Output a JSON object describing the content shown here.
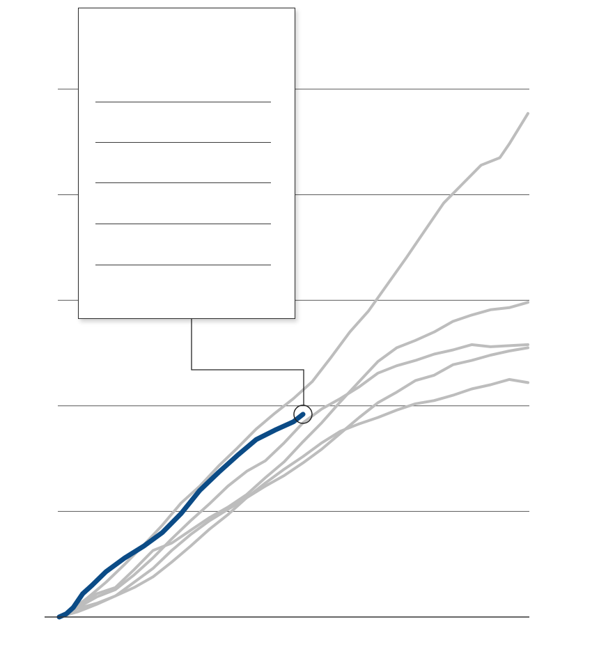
{
  "colors": {
    "highlight": "#0b4b86",
    "others": "#bdbdbd",
    "grid": "#555555",
    "axis": "#333333",
    "tooltip_border": "#2a2a2a"
  },
  "chart_data": {
    "type": "line",
    "title": "",
    "xlabel": "",
    "ylabel": "",
    "grid": true,
    "xlim": [
      0,
      100
    ],
    "ylim": [
      0,
      50
    ],
    "y_gridlines": [
      10,
      20,
      30,
      40,
      50
    ],
    "highlight_marker": {
      "x": 52,
      "y": 19.2
    },
    "series": [
      {
        "highlight": true,
        "points": [
          [
            0,
            0
          ],
          [
            1.5,
            0.3
          ],
          [
            3,
            0.9
          ],
          [
            5,
            2.2
          ],
          [
            7,
            3.0
          ],
          [
            10,
            4.3
          ],
          [
            14,
            5.6
          ],
          [
            18,
            6.7
          ],
          [
            22,
            8.0
          ],
          [
            26,
            9.8
          ],
          [
            30,
            12.0
          ],
          [
            34,
            13.7
          ],
          [
            38,
            15.3
          ],
          [
            42,
            16.8
          ],
          [
            46,
            17.7
          ],
          [
            50,
            18.5
          ],
          [
            52,
            19.2
          ]
        ]
      },
      {
        "highlight": false,
        "points": [
          [
            0,
            0
          ],
          [
            3,
            0.8
          ],
          [
            6,
            1.8
          ],
          [
            10,
            3.3
          ],
          [
            14,
            5.0
          ],
          [
            18,
            6.8
          ],
          [
            22,
            8.7
          ],
          [
            26,
            10.8
          ],
          [
            30,
            12.4
          ],
          [
            34,
            14.3
          ],
          [
            38,
            16.0
          ],
          [
            42,
            17.8
          ],
          [
            46,
            19.3
          ],
          [
            50,
            20.7
          ],
          [
            54,
            22.3
          ],
          [
            58,
            24.6
          ],
          [
            62,
            27.0
          ],
          [
            66,
            29.0
          ],
          [
            70,
            31.5
          ],
          [
            74,
            34.0
          ],
          [
            78,
            36.6
          ],
          [
            82,
            39.2
          ],
          [
            86,
            41.0
          ],
          [
            90,
            42.8
          ],
          [
            94,
            43.5
          ],
          [
            96,
            44.8
          ],
          [
            100,
            47.7
          ]
        ]
      },
      {
        "highlight": false,
        "points": [
          [
            0,
            0
          ],
          [
            4,
            1.0
          ],
          [
            8,
            2.2
          ],
          [
            12,
            2.8
          ],
          [
            16,
            4.5
          ],
          [
            20,
            6.3
          ],
          [
            24,
            7.0
          ],
          [
            28,
            8.2
          ],
          [
            32,
            9.4
          ],
          [
            36,
            10.4
          ],
          [
            40,
            11.6
          ],
          [
            44,
            13.2
          ],
          [
            48,
            14.7
          ],
          [
            52,
            16.6
          ],
          [
            56,
            18.4
          ],
          [
            60,
            20.4
          ],
          [
            64,
            22.3
          ],
          [
            68,
            24.2
          ],
          [
            72,
            25.5
          ],
          [
            76,
            26.2
          ],
          [
            80,
            27.0
          ],
          [
            84,
            28.0
          ],
          [
            88,
            28.6
          ],
          [
            92,
            29.1
          ],
          [
            96,
            29.3
          ],
          [
            100,
            29.8
          ]
        ]
      },
      {
        "highlight": false,
        "points": [
          [
            0,
            0
          ],
          [
            4,
            0.9
          ],
          [
            8,
            1.9
          ],
          [
            12,
            2.6
          ],
          [
            16,
            4.0
          ],
          [
            20,
            5.6
          ],
          [
            24,
            7.4
          ],
          [
            28,
            9.1
          ],
          [
            32,
            10.7
          ],
          [
            36,
            12.4
          ],
          [
            40,
            13.8
          ],
          [
            44,
            14.8
          ],
          [
            48,
            16.5
          ],
          [
            52,
            18.4
          ],
          [
            56,
            19.7
          ],
          [
            60,
            20.7
          ],
          [
            64,
            21.8
          ],
          [
            68,
            23.1
          ],
          [
            72,
            23.8
          ],
          [
            76,
            24.3
          ],
          [
            80,
            24.9
          ],
          [
            84,
            25.3
          ],
          [
            88,
            25.8
          ],
          [
            92,
            25.6
          ],
          [
            96,
            25.7
          ],
          [
            100,
            25.8
          ]
        ]
      },
      {
        "highlight": false,
        "points": [
          [
            0,
            0
          ],
          [
            4,
            0.5
          ],
          [
            8,
            1.2
          ],
          [
            12,
            2.0
          ],
          [
            16,
            3.3
          ],
          [
            20,
            4.6
          ],
          [
            24,
            6.3
          ],
          [
            28,
            7.8
          ],
          [
            32,
            9.1
          ],
          [
            36,
            10.2
          ],
          [
            40,
            11.3
          ],
          [
            44,
            12.4
          ],
          [
            48,
            13.4
          ],
          [
            52,
            14.6
          ],
          [
            56,
            15.9
          ],
          [
            60,
            17.4
          ],
          [
            64,
            18.9
          ],
          [
            68,
            20.3
          ],
          [
            72,
            21.3
          ],
          [
            76,
            22.4
          ],
          [
            80,
            22.9
          ],
          [
            84,
            23.9
          ],
          [
            88,
            24.3
          ],
          [
            92,
            24.8
          ],
          [
            96,
            25.2
          ],
          [
            100,
            25.5
          ]
        ]
      },
      {
        "highlight": false,
        "points": [
          [
            0,
            0
          ],
          [
            4,
            0.8
          ],
          [
            8,
            1.3
          ],
          [
            12,
            2.0
          ],
          [
            16,
            2.8
          ],
          [
            20,
            3.8
          ],
          [
            24,
            5.2
          ],
          [
            28,
            6.7
          ],
          [
            32,
            8.3
          ],
          [
            36,
            9.7
          ],
          [
            40,
            11.3
          ],
          [
            44,
            12.7
          ],
          [
            48,
            14.0
          ],
          [
            52,
            15.2
          ],
          [
            56,
            16.5
          ],
          [
            60,
            17.6
          ],
          [
            64,
            18.3
          ],
          [
            68,
            18.9
          ],
          [
            72,
            19.6
          ],
          [
            76,
            20.2
          ],
          [
            80,
            20.5
          ],
          [
            84,
            21.0
          ],
          [
            88,
            21.6
          ],
          [
            92,
            22.0
          ],
          [
            96,
            22.5
          ],
          [
            100,
            22.2
          ]
        ]
      }
    ]
  },
  "tooltip": {
    "rows": [
      "",
      "",
      "",
      "",
      ""
    ]
  }
}
